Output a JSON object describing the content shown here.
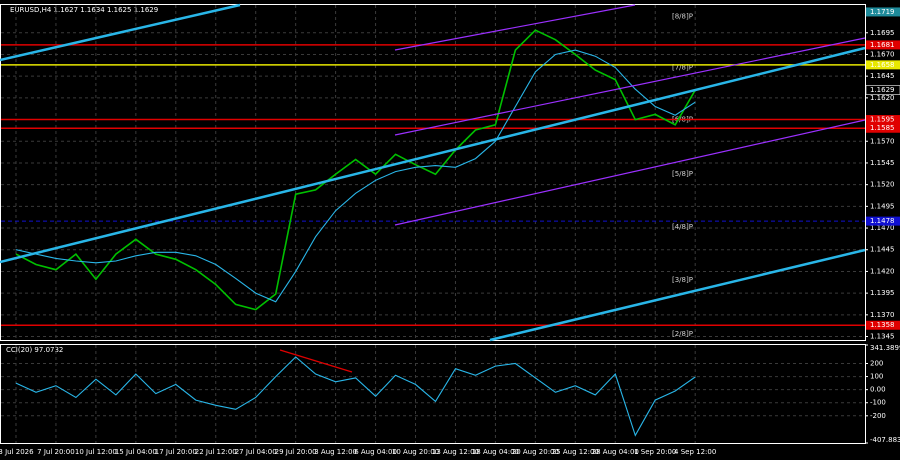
{
  "chart_data": [
    {
      "type": "line",
      "title": "EURUSD,H4  1.1627 1.1634 1.1625 1.1629",
      "x": [
        0,
        8,
        16,
        24,
        32,
        40,
        48,
        56,
        64,
        72,
        80,
        88,
        96,
        104,
        112,
        120,
        128,
        136,
        144,
        152,
        160,
        168,
        176,
        184,
        192,
        200,
        208,
        216,
        224,
        232,
        240,
        248,
        256,
        264,
        272
      ],
      "xlim": [
        -6,
        340
      ],
      "ylim": [
        1.1341,
        1.1727
      ],
      "grid": true,
      "yticks": [
        1.1345,
        {
          "value": 1.137,
          "label": "1.1370"
        },
        1.1395,
        {
          "value": 1.142,
          "label": "1.1420"
        },
        1.1445,
        {
          "value": 1.147,
          "label": "1.1470"
        },
        1.1495,
        {
          "value": 1.152,
          "label": "1.1520"
        },
        1.1545,
        {
          "value": 1.157,
          "label": "1.1570"
        },
        1.1595,
        {
          "value": 1.162,
          "label": "1.1620"
        },
        1.1645,
        {
          "value": 1.167,
          "label": "1.1670"
        },
        1.1695
      ],
      "xticks": [
        {
          "value": 0,
          "label": "3 Jul 2026"
        },
        {
          "value": 16,
          "label": "7 Jul 20:00"
        },
        {
          "value": 32,
          "label": "10 Jul 12:00"
        },
        {
          "value": 48,
          "label": "15 Jul 04:00"
        },
        {
          "value": 64,
          "label": "17 Jul 20:00"
        },
        {
          "value": 80,
          "label": "22 Jul 12:00"
        },
        {
          "value": 96,
          "label": "27 Jul 04:00"
        },
        {
          "value": 112,
          "label": "29 Jul 20:00"
        },
        {
          "value": 128,
          "label": "3 Aug 12:00"
        },
        {
          "value": 144,
          "label": "6 Aug 04:00"
        },
        {
          "value": 160,
          "label": "10 Aug 20:00"
        },
        {
          "value": 176,
          "label": "13 Aug 12:00"
        },
        {
          "value": 192,
          "label": "18 Aug 04:00"
        },
        {
          "value": 208,
          "label": "20 Aug 20:00"
        },
        {
          "value": 224,
          "label": "25 Aug 12:00"
        },
        {
          "value": 240,
          "label": "28 Aug 04:00"
        },
        {
          "value": 256,
          "label": "1 Sep 20:00"
        },
        {
          "value": 272,
          "label": "4 Sep 12:00"
        }
      ],
      "series": [
        {
          "color": "#00c000",
          "values": [
            1.144,
            1.1428,
            1.1422,
            1.144,
            1.1411,
            1.144,
            1.1457,
            1.144,
            1.1434,
            1.1422,
            1.1405,
            1.1382,
            1.1376,
            1.1394,
            1.1509,
            1.1514,
            1.1532,
            1.1549,
            1.1532,
            1.1555,
            1.1543,
            1.1532,
            1.156,
            1.1583,
            1.1589,
            1.1675,
            1.1698,
            1.1687,
            1.167,
            1.1652,
            1.1641,
            1.1595,
            1.1601,
            1.1589,
            1.1629
          ]
        },
        {
          "color": "#29b6e8",
          "values": [
            1.1445,
            1.144,
            1.1435,
            1.1432,
            1.143,
            1.1432,
            1.1438,
            1.1442,
            1.1442,
            1.1438,
            1.1428,
            1.1412,
            1.1395,
            1.1385,
            1.142,
            1.146,
            1.149,
            1.151,
            1.1525,
            1.1535,
            1.154,
            1.1542,
            1.154,
            1.155,
            1.157,
            1.161,
            1.165,
            1.167,
            1.1675,
            1.1668,
            1.1655,
            1.163,
            1.161,
            1.16,
            1.1615
          ]
        }
      ],
      "levels": [
        {
          "value": 1.1719,
          "color": "#1e8a9a"
        },
        {
          "value": 1.1681,
          "color": "#e00000"
        },
        {
          "value": 1.1658,
          "color": "#e8e800"
        },
        {
          "value": 1.1629,
          "color": "#000000"
        },
        {
          "value": 1.1595,
          "color": "#e00000"
        },
        {
          "value": 1.1585,
          "color": "#e00000"
        },
        {
          "value": 1.1478,
          "color": "#1010d0"
        },
        {
          "value": 1.1358,
          "color": "#e00000"
        }
      ],
      "annotations": [
        {
          "value": 1.1714,
          "label": "[8/8]P",
          "color": "#29b6e8"
        },
        {
          "value": 1.1655,
          "label": "[7/8]P",
          "color": "#e8e800"
        },
        {
          "value": 1.1595,
          "label": "[6/8]P",
          "color": "#e00000"
        },
        {
          "value": 1.1532,
          "label": "[5/8]P",
          "color": "#00a000"
        },
        {
          "value": 1.1471,
          "label": "[4/8]P",
          "color": "#3030ff"
        },
        {
          "value": 1.141,
          "label": "[3/8]P",
          "color": "#00a000"
        },
        {
          "value": 1.1348,
          "label": "[2/8]P",
          "color": "#e00000"
        }
      ]
    },
    {
      "type": "line",
      "title": "CCI(20) 97.0732",
      "x": [
        0,
        8,
        16,
        24,
        32,
        40,
        48,
        56,
        64,
        72,
        80,
        88,
        96,
        104,
        112,
        120,
        128,
        136,
        144,
        152,
        160,
        168,
        176,
        184,
        192,
        200,
        208,
        216,
        224,
        232,
        240,
        248,
        256,
        264,
        272
      ],
      "xlim": [
        -6,
        340
      ],
      "ylim": [
        -407.883,
        341.3899
      ],
      "grid": true,
      "yticks": [
        341.3899,
        200,
        100,
        {
          "value": 0,
          "label": "0.00"
        },
        -100,
        -200,
        -407.883
      ],
      "series": [
        {
          "color": "#29b6e8",
          "values": [
            50,
            -20,
            30,
            -60,
            80,
            -40,
            120,
            -30,
            40,
            -80,
            -120,
            -150,
            -60,
            100,
            250,
            120,
            60,
            90,
            -50,
            110,
            40,
            -90,
            160,
            110,
            180,
            200,
            90,
            -20,
            30,
            -40,
            120,
            -350,
            -80,
            -10,
            97.0732
          ]
        }
      ]
    }
  ]
}
